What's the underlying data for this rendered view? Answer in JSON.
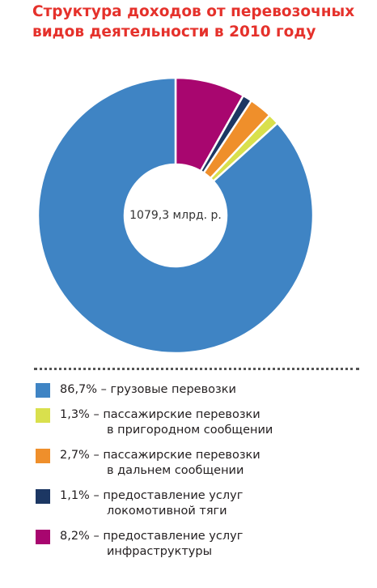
{
  "title": {
    "line1": "Структура доходов от перевозочных",
    "line2": "видов деятельности в 2010 году"
  },
  "chart_data": {
    "type": "pie",
    "title": "Структура доходов от перевозочных видов деятельности в 2010 году",
    "center_label": "1079,3 млрд. р.",
    "legend_placement": "bottom",
    "slices": [
      {
        "value": 86.7,
        "percent_label": "86,7%",
        "label_line1": "грузовые перевозки",
        "label_line2": "",
        "color": "#3f84c4"
      },
      {
        "value": 1.3,
        "percent_label": "1,3%",
        "label_line1": "пассажирские перевозки",
        "label_line2": "в пригородном сообщении",
        "color": "#d9e04d"
      },
      {
        "value": 2.7,
        "percent_label": "2,7%",
        "label_line1": "пассажирские перевозки",
        "label_line2": "в дальнем сообщении",
        "color": "#ef8f2b"
      },
      {
        "value": 1.1,
        "percent_label": "1,1%",
        "label_line1": "предоставление услуг",
        "label_line2": "локомотивной тяги",
        "color": "#1c3763"
      },
      {
        "value": 8.2,
        "percent_label": "8,2%",
        "label_line1": "предоставление услуг",
        "label_line2": "инфраструктуры",
        "color": "#a8066f"
      }
    ],
    "draw_order": [
      4,
      3,
      2,
      1,
      0
    ],
    "dash": " – "
  }
}
